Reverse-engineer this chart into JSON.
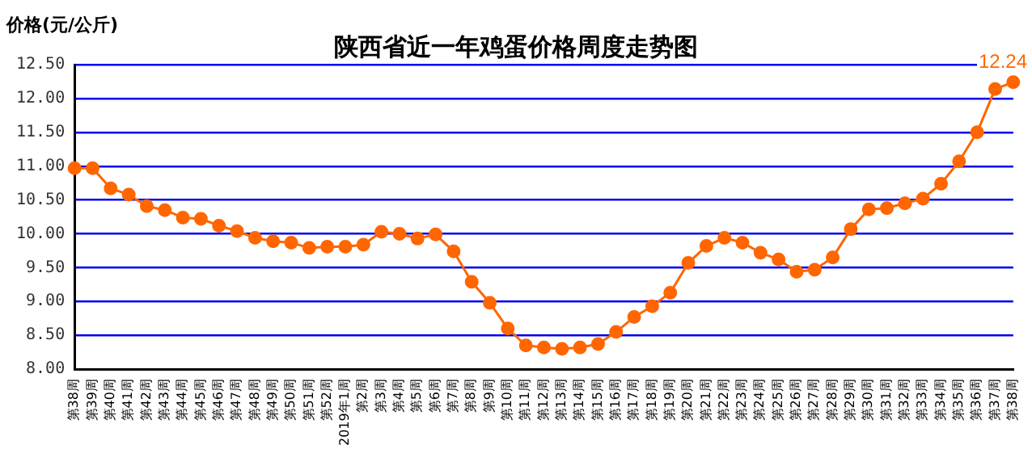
{
  "chart_data": {
    "type": "line",
    "title": "陕西省近一年鸡蛋价格周度走势图",
    "ylabel": "价格(元/公斤)",
    "categories": [
      "第38周",
      "第39周",
      "第40周",
      "第41周",
      "第42周",
      "第43周",
      "第44周",
      "第45周",
      "第46周",
      "第47周",
      "第48周",
      "第49周",
      "第50周",
      "第51周",
      "第52周",
      "2019年1周",
      "第2周",
      "第3周",
      "第4周",
      "第5周",
      "第6周",
      "第7周",
      "第8周",
      "第9周",
      "第10周",
      "第11周",
      "第12周",
      "第13周",
      "第14周",
      "第15周",
      "第16周",
      "第17周",
      "第18周",
      "第19周",
      "第20周",
      "第21周",
      "第22周",
      "第23周",
      "第24周",
      "第25周",
      "第26周",
      "第27周",
      "第28周",
      "第29周",
      "第30周",
      "第31周",
      "第32周",
      "第33周",
      "第34周",
      "第35周",
      "第36周",
      "第37周",
      "第38周"
    ],
    "series": [
      {
        "color": "#ff6600",
        "values": [
          10.97,
          10.97,
          10.67,
          10.58,
          10.41,
          10.35,
          10.24,
          10.22,
          10.12,
          10.04,
          9.94,
          9.89,
          9.87,
          9.79,
          9.81,
          9.81,
          9.84,
          10.03,
          10.0,
          9.93,
          9.99,
          9.74,
          9.29,
          8.98,
          8.6,
          8.35,
          8.32,
          8.3,
          8.32,
          8.37,
          8.55,
          8.77,
          8.93,
          9.13,
          9.57,
          9.82,
          9.94,
          9.87,
          9.72,
          9.62,
          9.44,
          9.47,
          9.65,
          10.07,
          10.36,
          10.38,
          10.45,
          10.52,
          10.74,
          11.07,
          11.5,
          12.14,
          12.24
        ],
        "value_labels": [
          null,
          null,
          null,
          null,
          null,
          null,
          null,
          null,
          null,
          null,
          null,
          null,
          null,
          null,
          null,
          null,
          null,
          null,
          null,
          null,
          null,
          null,
          null,
          null,
          null,
          null,
          null,
          null,
          null,
          null,
          null,
          null,
          null,
          null,
          null,
          null,
          null,
          null,
          null,
          null,
          null,
          null,
          null,
          null,
          null,
          null,
          null,
          null,
          null,
          null,
          null,
          null,
          "12.24"
        ]
      }
    ],
    "ylim": [
      8,
      12.5
    ],
    "yticks": [
      {
        "value": 8,
        "label": "8.00"
      },
      {
        "value": 8.5,
        "label": "8.50"
      },
      {
        "value": 9,
        "label": "9.00"
      },
      {
        "value": 9.5,
        "label": "9.50"
      },
      {
        "value": 10,
        "label": "10.00"
      },
      {
        "value": 10.5,
        "label": "10.50"
      },
      {
        "value": 11,
        "label": "11.00"
      },
      {
        "value": 11.5,
        "label": "11.50"
      },
      {
        "value": 12,
        "label": "12.00"
      },
      {
        "value": 12.5,
        "label": "12.50"
      }
    ],
    "grid": "y",
    "marker": "circle",
    "line_style": "solid"
  }
}
